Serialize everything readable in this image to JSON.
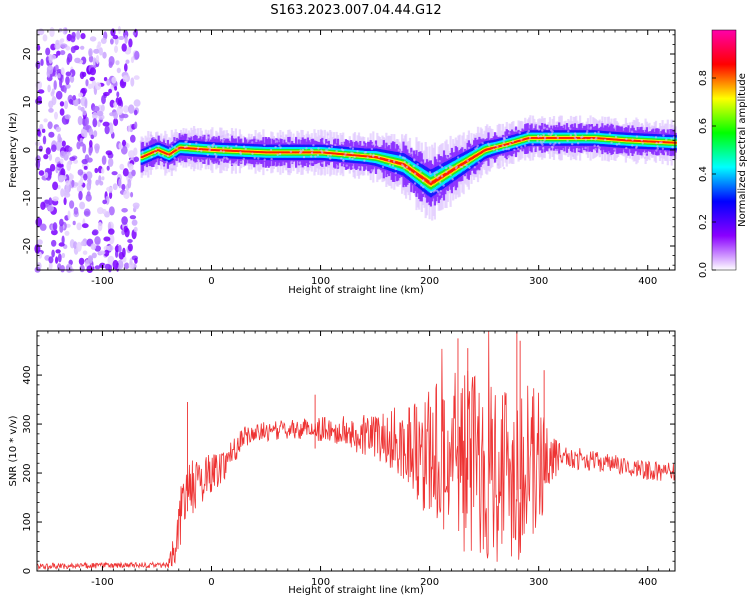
{
  "title": "S163.2023.007.04.44.G12",
  "chart_data": [
    {
      "type": "heatmap",
      "xlabel": "Height of straight line (km)",
      "ylabel": "Frequency (Hz)",
      "xlim": [
        -160,
        425
      ],
      "ylim": [
        -25,
        25
      ],
      "xticks": [
        -100,
        0,
        100,
        200,
        300,
        400
      ],
      "yticks": [
        -20,
        -10,
        0,
        10,
        20
      ],
      "colorbar": {
        "label": "Normalized spectral amplitude",
        "range": [
          0,
          1
        ],
        "ticks": [
          "0.0",
          "0.2",
          "0.4",
          "0.6",
          "0.8"
        ],
        "colors": [
          "#ffffff",
          "#8a00ff",
          "#0000ff",
          "#00ffff",
          "#00ff00",
          "#ffff00",
          "#ff0000",
          "#ff00aa"
        ]
      },
      "noise_region_x": [
        -160,
        -68
      ],
      "ridge": {
        "x": [
          -65,
          -50,
          -40,
          -30,
          0,
          50,
          100,
          150,
          175,
          200,
          225,
          250,
          275,
          290,
          320,
          350,
          380,
          425
        ],
        "freq": [
          -1.5,
          0,
          -1,
          0.5,
          0,
          -0.5,
          -0.5,
          -1.5,
          -3,
          -7,
          -3.5,
          0,
          1.5,
          2.5,
          2.5,
          2.5,
          2,
          1.5
        ]
      }
    },
    {
      "type": "line",
      "xlabel": "Height of straight line (km)",
      "ylabel": "SNR (10 * v/v)",
      "xlim": [
        -160,
        425
      ],
      "ylim": [
        0,
        490
      ],
      "xticks": [
        -100,
        0,
        100,
        200,
        300,
        400
      ],
      "yticks": [
        0,
        100,
        200,
        300,
        400
      ],
      "color": "#ee3333",
      "series": [
        {
          "x": [
            -160,
            -40,
            -35,
            -30,
            -25,
            -20,
            -15,
            -10,
            0,
            10,
            20,
            30,
            50,
            80,
            100,
            150,
            180,
            200,
            220,
            240,
            260,
            280,
            300,
            310,
            320,
            350,
            400,
            425
          ],
          "mean": [
            10,
            12,
            40,
            90,
            150,
            170,
            175,
            185,
            200,
            215,
            245,
            275,
            285,
            290,
            290,
            275,
            260,
            240,
            230,
            225,
            215,
            205,
            220,
            230,
            235,
            225,
            205,
            200
          ],
          "spread": [
            6,
            6,
            30,
            60,
            60,
            60,
            55,
            50,
            40,
            35,
            30,
            20,
            20,
            20,
            25,
            45,
            90,
            140,
            180,
            200,
            200,
            190,
            150,
            60,
            25,
            20,
            20,
            20
          ]
        }
      ]
    }
  ]
}
